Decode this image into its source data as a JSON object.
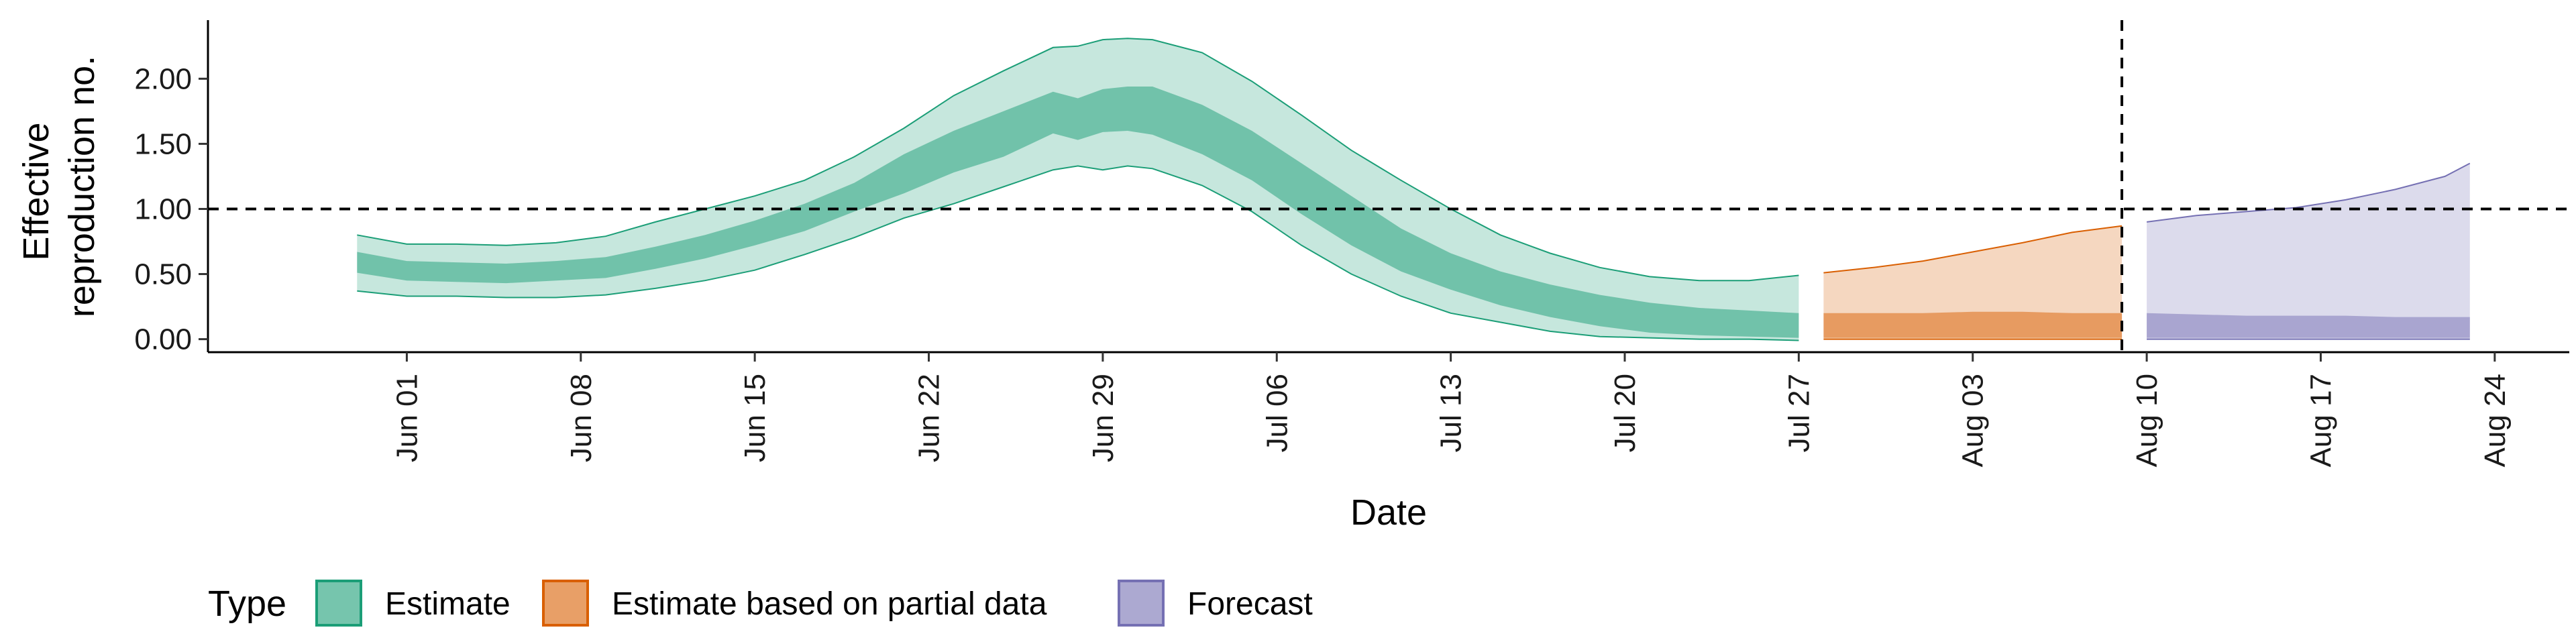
{
  "chart_data": {
    "type": "area",
    "xlabel": "Date",
    "ylabel": "Effective reproduction no.",
    "ylabel_lines": [
      "Effective",
      "reproduction no."
    ],
    "x_tick_labels": [
      "Jun 01",
      "Jun 08",
      "Jun 15",
      "Jun 22",
      "Jun 29",
      "Jul 06",
      "Jul 13",
      "Jul 20",
      "Jul 27",
      "Aug 03",
      "Aug 10",
      "Aug 17",
      "Aug 24"
    ],
    "x_tick_dates": [
      "2020-06-01",
      "2020-06-08",
      "2020-06-15",
      "2020-06-22",
      "2020-06-29",
      "2020-07-06",
      "2020-07-13",
      "2020-07-20",
      "2020-07-27",
      "2020-08-03",
      "2020-08-10",
      "2020-08-17",
      "2020-08-24"
    ],
    "y_tick_labels": [
      "0.00",
      "0.50",
      "1.00",
      "1.50",
      "2.00"
    ],
    "y_ticks": [
      0,
      0.5,
      1.0,
      1.5,
      2.0
    ],
    "xlim": [
      "2020-05-24",
      "2020-08-27"
    ],
    "ylim": [
      -0.1,
      2.45
    ],
    "grid": false,
    "hline": 1.0,
    "vline_date": "2020-08-09",
    "legend": {
      "title": "Type",
      "position": "bottom-left",
      "entries": [
        {
          "label": "Estimate",
          "color": "#1B9E77"
        },
        {
          "label": "Estimate based on partial data",
          "color": "#D95F02"
        },
        {
          "label": "Forecast",
          "color": "#7570B3"
        }
      ]
    },
    "series": [
      {
        "name": "Estimate",
        "color": "#1B9E77",
        "dates": [
          "2020-05-30",
          "2020-06-01",
          "2020-06-03",
          "2020-06-05",
          "2020-06-07",
          "2020-06-09",
          "2020-06-11",
          "2020-06-13",
          "2020-06-15",
          "2020-06-17",
          "2020-06-19",
          "2020-06-21",
          "2020-06-23",
          "2020-06-25",
          "2020-06-27",
          "2020-06-28",
          "2020-06-29",
          "2020-06-30",
          "2020-07-01",
          "2020-07-03",
          "2020-07-05",
          "2020-07-07",
          "2020-07-09",
          "2020-07-11",
          "2020-07-13",
          "2020-07-15",
          "2020-07-17",
          "2020-07-19",
          "2020-07-21",
          "2020-07-23",
          "2020-07-25",
          "2020-07-27"
        ],
        "upper90": [
          0.8,
          0.73,
          0.73,
          0.72,
          0.74,
          0.79,
          0.9,
          1.0,
          1.1,
          1.22,
          1.4,
          1.62,
          1.87,
          2.06,
          2.24,
          2.25,
          2.3,
          2.31,
          2.3,
          2.2,
          1.98,
          1.72,
          1.45,
          1.22,
          1.0,
          0.8,
          0.66,
          0.55,
          0.48,
          0.45,
          0.45,
          0.49
        ],
        "upper50": [
          0.67,
          0.6,
          0.59,
          0.58,
          0.6,
          0.63,
          0.71,
          0.8,
          0.91,
          1.04,
          1.2,
          1.42,
          1.6,
          1.75,
          1.9,
          1.85,
          1.92,
          1.94,
          1.94,
          1.8,
          1.6,
          1.35,
          1.1,
          0.85,
          0.66,
          0.52,
          0.42,
          0.34,
          0.28,
          0.24,
          0.22,
          0.2
        ],
        "lower50": [
          0.51,
          0.45,
          0.44,
          0.43,
          0.45,
          0.47,
          0.54,
          0.62,
          0.72,
          0.83,
          0.98,
          1.12,
          1.28,
          1.4,
          1.58,
          1.53,
          1.59,
          1.6,
          1.57,
          1.42,
          1.22,
          0.96,
          0.72,
          0.52,
          0.38,
          0.26,
          0.17,
          0.1,
          0.05,
          0.03,
          0.02,
          0.01
        ],
        "lower90": [
          0.37,
          0.33,
          0.33,
          0.32,
          0.32,
          0.34,
          0.39,
          0.45,
          0.53,
          0.65,
          0.78,
          0.93,
          1.04,
          1.17,
          1.3,
          1.33,
          1.3,
          1.33,
          1.31,
          1.18,
          0.98,
          0.72,
          0.5,
          0.33,
          0.2,
          0.13,
          0.06,
          0.02,
          0.01,
          0.0,
          0.0,
          -0.01
        ]
      },
      {
        "name": "Estimate based on partial data",
        "color": "#D95F02",
        "dates": [
          "2020-07-28",
          "2020-07-30",
          "2020-08-01",
          "2020-08-03",
          "2020-08-05",
          "2020-08-07",
          "2020-08-09"
        ],
        "upper90": [
          0.51,
          0.55,
          0.6,
          0.67,
          0.74,
          0.82,
          0.87
        ],
        "upper50": [
          0.2,
          0.2,
          0.2,
          0.21,
          0.21,
          0.2,
          0.2
        ],
        "lower50": [
          0.01,
          0.01,
          0.01,
          0.01,
          0.01,
          0.01,
          0.01
        ],
        "lower90": [
          0.0,
          0.0,
          0.0,
          0.0,
          0.0,
          0.0,
          0.0
        ]
      },
      {
        "name": "Forecast",
        "color": "#7570B3",
        "dates": [
          "2020-08-10",
          "2020-08-12",
          "2020-08-14",
          "2020-08-16",
          "2020-08-18",
          "2020-08-20",
          "2020-08-22",
          "2020-08-23"
        ],
        "upper90": [
          0.9,
          0.95,
          0.98,
          1.01,
          1.07,
          1.15,
          1.25,
          1.35
        ],
        "upper50": [
          0.2,
          0.19,
          0.18,
          0.18,
          0.18,
          0.17,
          0.17,
          0.17
        ],
        "lower50": [
          0.01,
          0.01,
          0.01,
          0.01,
          0.01,
          0.01,
          0.01,
          0.01
        ],
        "lower90": [
          0.0,
          0.0,
          0.0,
          0.0,
          0.0,
          0.0,
          0.0,
          0.0
        ]
      }
    ]
  }
}
